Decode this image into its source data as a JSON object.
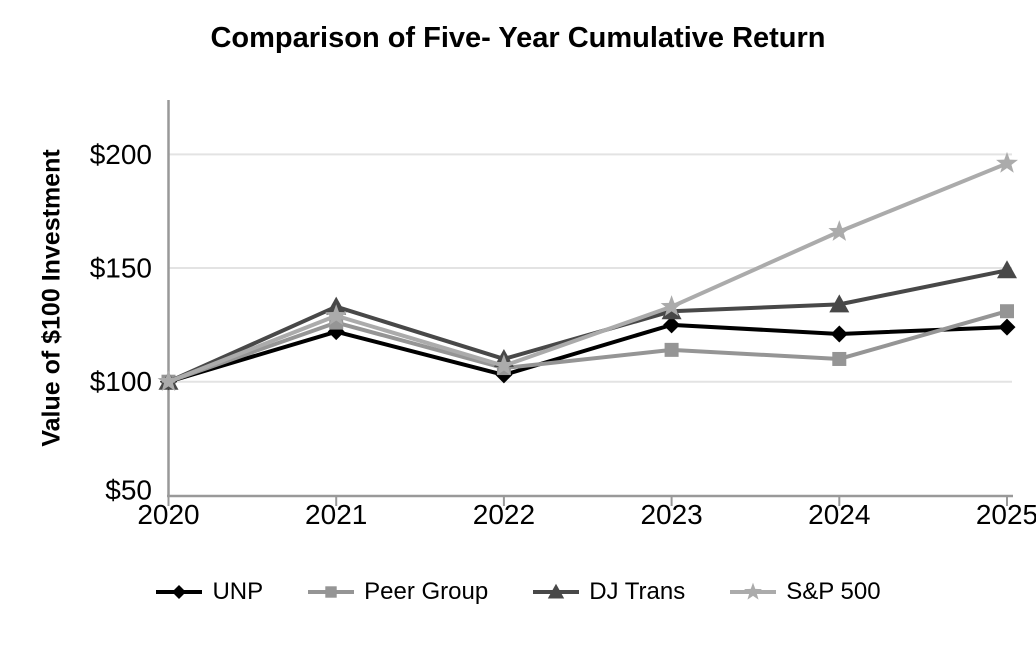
{
  "figure": {
    "title": "Comparison of Five- Year Cumulative Return"
  },
  "colors": {
    "background": "#ffffff",
    "axis": "#999999",
    "grid": "#e3e3e3",
    "text": "#000000"
  },
  "chart_data": {
    "type": "line",
    "title": "Comparison of Five- Year Cumulative Return",
    "xlabel": "",
    "ylabel": "Value of $100 Investment",
    "x": [
      "2020",
      "2021",
      "2022",
      "2023",
      "2024",
      "2025"
    ],
    "y_ticks": [
      "$50",
      "$100",
      "$150",
      "$200"
    ],
    "y_tick_values": [
      50,
      100,
      150,
      200
    ],
    "grid_values": [
      100,
      150,
      200
    ],
    "ylim": [
      50,
      222
    ],
    "grid": true,
    "legend_position": "bottom",
    "series": [
      {
        "name": "UNP",
        "marker": "diamond",
        "color": "#000000",
        "values": [
          100,
          122,
          103,
          125,
          121,
          124
        ]
      },
      {
        "name": "Peer Group",
        "marker": "square",
        "color": "#959595",
        "values": [
          100,
          126,
          106,
          114,
          110,
          131
        ]
      },
      {
        "name": "DJ Trans",
        "marker": "triangle",
        "color": "#484848",
        "values": [
          100,
          133,
          110,
          131,
          134,
          149
        ]
      },
      {
        "name": "S&P 500",
        "marker": "star",
        "color": "#ababab",
        "values": [
          100,
          129,
          107,
          133,
          166,
          196
        ]
      }
    ]
  }
}
